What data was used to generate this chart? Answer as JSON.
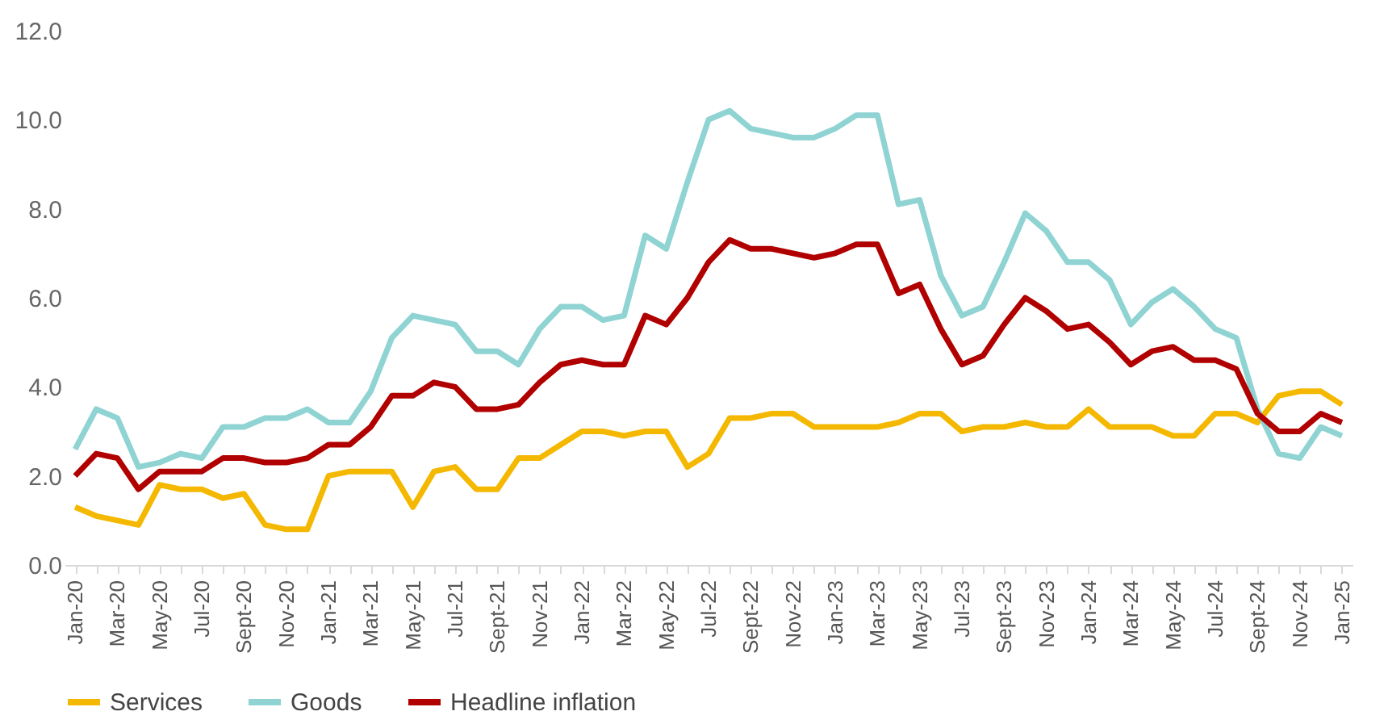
{
  "chart_data": {
    "type": "line",
    "categories": [
      "Jan-20",
      null,
      "Mar-20",
      null,
      "May-20",
      null,
      "Jul-20",
      null,
      "Sept-20",
      null,
      "Nov-20",
      null,
      "Jan-21",
      null,
      "Mar-21",
      null,
      "May-21",
      null,
      "Jul-21",
      null,
      "Sept-21",
      null,
      "Nov-21",
      null,
      "Jan-22",
      null,
      "Mar-22",
      null,
      "May-22",
      null,
      "Jul-22",
      null,
      "Sept-22",
      null,
      "Nov-22",
      null,
      "Jan-23",
      null,
      "Mar-23",
      null,
      "May-23",
      null,
      "Jul-23",
      null,
      "Sept-23",
      null,
      "Nov-23",
      null,
      "Jan-24",
      null,
      "Mar-24",
      null,
      "May-24",
      null,
      "Jul-24",
      null,
      "Sept-24",
      null,
      "Nov-24",
      null,
      "Jan-25"
    ],
    "series": [
      {
        "name": "Services",
        "color": "#f5b800",
        "values": [
          1.3,
          1.1,
          1.0,
          0.9,
          1.8,
          1.7,
          1.7,
          1.5,
          1.6,
          0.9,
          0.8,
          0.8,
          2.0,
          2.1,
          2.1,
          2.1,
          1.3,
          2.1,
          2.2,
          1.7,
          1.7,
          2.4,
          2.4,
          2.7,
          3.0,
          3.0,
          2.9,
          3.0,
          3.0,
          2.2,
          2.5,
          3.3,
          3.3,
          3.4,
          3.4,
          3.1,
          3.1,
          3.1,
          3.1,
          3.2,
          3.4,
          3.4,
          3.0,
          3.1,
          3.1,
          3.2,
          3.1,
          3.1,
          3.5,
          3.1,
          3.1,
          3.1,
          2.9,
          2.9,
          3.4,
          3.4,
          3.2,
          3.8,
          3.9,
          3.9,
          3.6
        ]
      },
      {
        "name": "Goods",
        "color": "#8fd3d3",
        "values": [
          2.6,
          3.5,
          3.3,
          2.2,
          2.3,
          2.5,
          2.4,
          3.1,
          3.1,
          3.3,
          3.3,
          3.5,
          3.2,
          3.2,
          3.9,
          5.1,
          5.6,
          5.5,
          5.4,
          4.8,
          4.8,
          4.5,
          5.3,
          5.8,
          5.8,
          5.5,
          5.6,
          7.4,
          7.1,
          8.6,
          10.0,
          10.2,
          9.8,
          9.7,
          9.6,
          9.6,
          9.8,
          10.1,
          10.1,
          8.1,
          8.2,
          6.5,
          5.6,
          5.8,
          6.8,
          7.9,
          7.5,
          6.8,
          6.8,
          6.4,
          5.4,
          5.9,
          6.2,
          5.8,
          5.3,
          5.1,
          3.5,
          2.5,
          2.4,
          3.1,
          2.9
        ]
      },
      {
        "name": "Headline inflation",
        "color": "#b00000",
        "values": [
          2.0,
          2.5,
          2.4,
          1.7,
          2.1,
          2.1,
          2.1,
          2.4,
          2.4,
          2.3,
          2.3,
          2.4,
          2.7,
          2.7,
          3.1,
          3.8,
          3.8,
          4.1,
          4.0,
          3.5,
          3.5,
          3.6,
          4.1,
          4.5,
          4.6,
          4.5,
          4.5,
          5.6,
          5.4,
          6.0,
          6.8,
          7.3,
          7.1,
          7.1,
          7.0,
          6.9,
          7.0,
          7.2,
          7.2,
          6.1,
          6.3,
          5.3,
          4.5,
          4.7,
          5.4,
          6.0,
          5.7,
          5.3,
          5.4,
          5.0,
          4.5,
          4.8,
          4.9,
          4.6,
          4.6,
          4.4,
          3.4,
          3.0,
          3.0,
          3.4,
          3.2
        ]
      }
    ],
    "ylim": [
      0,
      12
    ],
    "yticks": [
      {
        "value": 0,
        "label": "0.0"
      },
      {
        "value": 2,
        "label": "2.0"
      },
      {
        "value": 4,
        "label": "4.0"
      },
      {
        "value": 6,
        "label": "6.0"
      },
      {
        "value": 8,
        "label": "8.0"
      },
      {
        "value": 10,
        "label": "10.0"
      },
      {
        "value": 12,
        "label": "12.0"
      }
    ],
    "legend": "bottom",
    "grid": false,
    "line_style": "solid",
    "marker": "none"
  }
}
